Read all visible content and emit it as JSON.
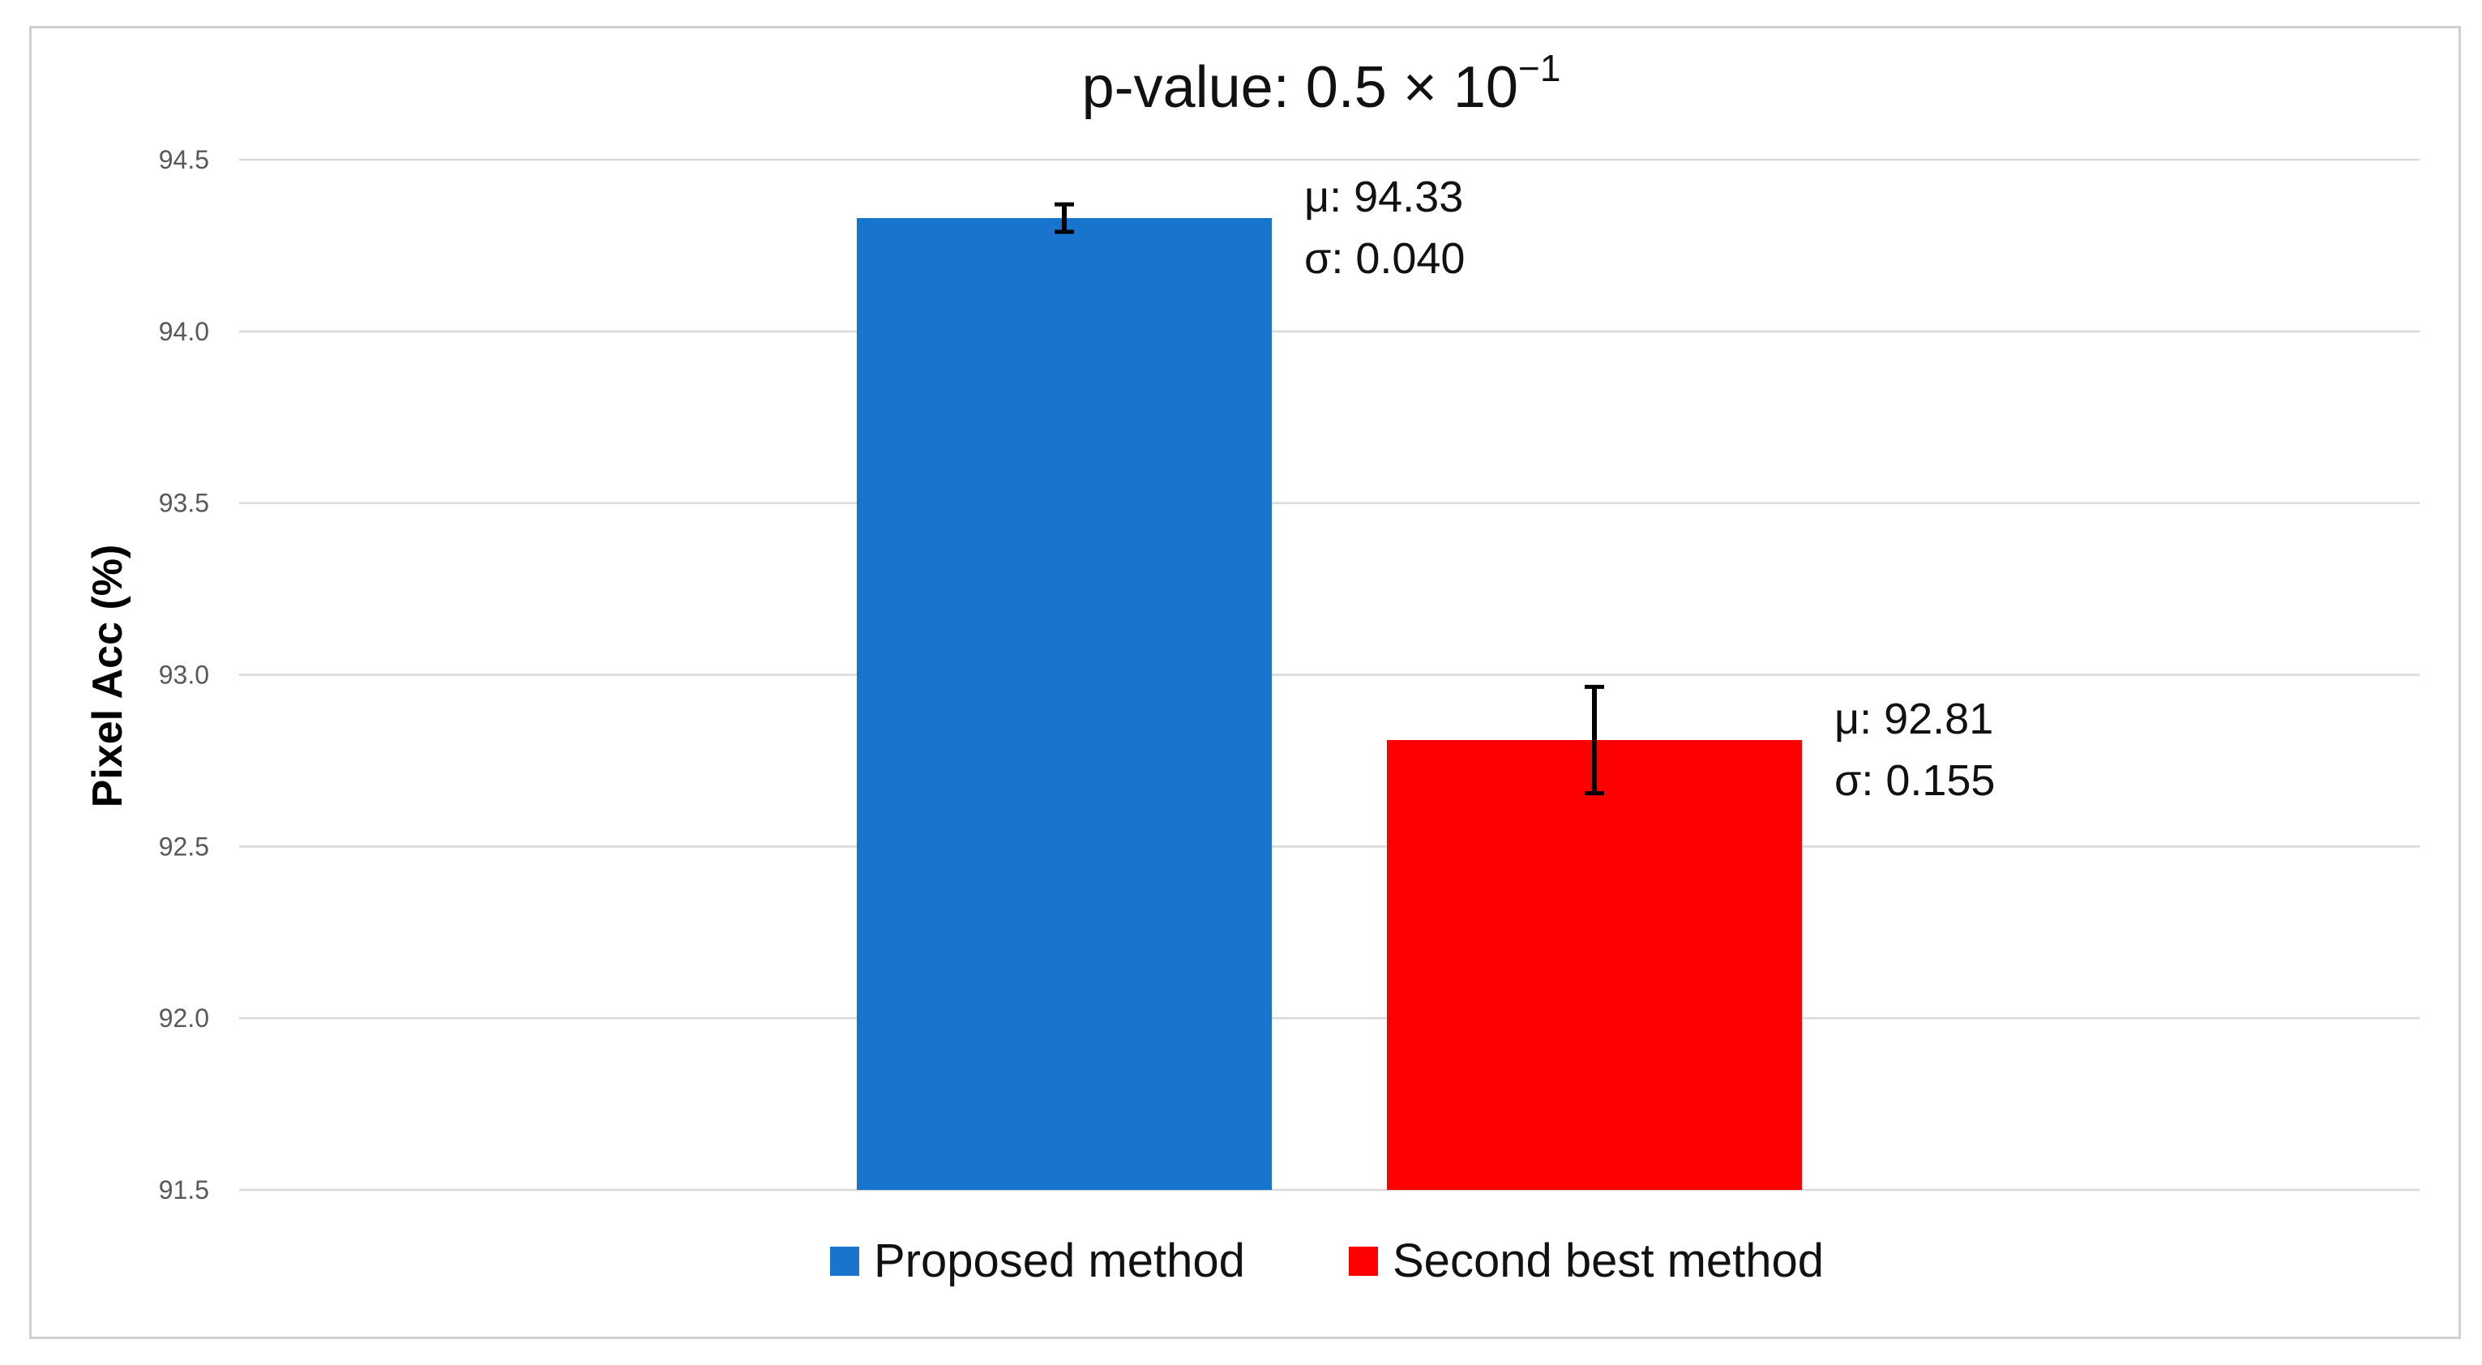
{
  "chart_data": {
    "type": "bar",
    "title": "p-value: 0.5 × 10",
    "title_exponent": "−1",
    "ylabel": "Pixel Acc (%)",
    "xlabel": "",
    "ylim": [
      91.5,
      94.5
    ],
    "yticks": [
      "91.5",
      "92.0",
      "92.5",
      "93.0",
      "93.5",
      "94.0",
      "94.5"
    ],
    "grid": true,
    "legend_position": "bottom",
    "series": [
      {
        "name": "Proposed method",
        "value": 94.33,
        "error": 0.04,
        "color": "#1874CD",
        "mean_label": "μ: 94.33",
        "std_label": "σ: 0.040"
      },
      {
        "name": "Second best method",
        "value": 92.81,
        "error": 0.155,
        "color": "#FF0000",
        "mean_label": "μ: 92.81",
        "std_label": "σ: 0.155"
      }
    ]
  }
}
